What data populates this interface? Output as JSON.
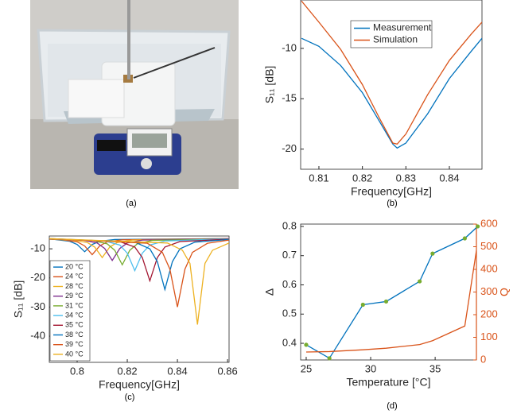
{
  "captions": [
    "(a)",
    "(b)",
    "(c)",
    "(d)"
  ],
  "chart_data": [
    {
      "type": "line",
      "xlabel": "Frequency[GHz]",
      "ylabel": "S₁₁ [dB]",
      "xlim": [
        0.8058,
        0.8475
      ],
      "xticks": [
        0.81,
        0.82,
        0.83,
        0.84
      ],
      "ylim": [
        -22,
        -5.2
      ],
      "yticks": [
        -20,
        -15,
        -10
      ],
      "legend": "top",
      "grid": false,
      "x": [
        0.806,
        0.81,
        0.815,
        0.82,
        0.824,
        0.827,
        0.828,
        0.83,
        0.835,
        0.84,
        0.845,
        0.8475
      ],
      "series": [
        {
          "name": "Measurement",
          "color": "#0072BD",
          "values": [
            -9.0,
            -9.8,
            -11.7,
            -14.4,
            -17.3,
            -19.5,
            -19.9,
            -19.4,
            -16.5,
            -13.0,
            -10.3,
            -9.0
          ]
        },
        {
          "name": "Simulation",
          "color": "#D95319",
          "values": [
            -5.3,
            -7.4,
            -10.1,
            -13.6,
            -17.0,
            -19.4,
            -19.5,
            -18.5,
            -14.6,
            -11.2,
            -8.6,
            -7.4
          ]
        }
      ]
    },
    {
      "type": "line",
      "xlabel": "Frequency[GHz]",
      "ylabel": "S₁₁ [dB]",
      "xlim": [
        0.7889,
        0.8606
      ],
      "xticks": [
        {
          "value": 0.8,
          "label": "0.8"
        },
        0.82,
        0.84,
        0.86
      ],
      "ylim": [
        -49,
        -5.6
      ],
      "yticks": [
        -40,
        -30,
        -20,
        -10
      ],
      "legend": "lower left",
      "grid": false,
      "series": [
        {
          "name": "20 °C",
          "color": "#0072BD",
          "x": [
            0.789,
            0.791,
            0.797,
            0.8,
            0.803,
            0.806,
            0.809,
            0.815,
            0.8606
          ],
          "values": [
            -6.6,
            -6.8,
            -7.4,
            -8.5,
            -11,
            -8.5,
            -7.4,
            -6.8,
            -6.5
          ]
        },
        {
          "name": "24 °C",
          "color": "#D95319",
          "x": [
            0.789,
            0.794,
            0.8,
            0.803,
            0.806,
            0.809,
            0.812,
            0.818,
            0.8606
          ],
          "values": [
            -6.7,
            -6.9,
            -7.6,
            -9,
            -12,
            -9,
            -7.6,
            -6.9,
            -6.5
          ]
        },
        {
          "name": "28 °C",
          "color": "#EDB120",
          "x": [
            0.789,
            0.798,
            0.804,
            0.807,
            0.81,
            0.813,
            0.816,
            0.822,
            0.8606
          ],
          "values": [
            -6.7,
            -7.0,
            -7.8,
            -9.4,
            -13,
            -9.4,
            -7.8,
            -7.0,
            -6.5
          ]
        },
        {
          "name": "29 °C",
          "color": "#7E2F8E",
          "x": [
            0.789,
            0.802,
            0.808,
            0.811,
            0.814,
            0.817,
            0.82,
            0.826,
            0.8606
          ],
          "values": [
            -6.6,
            -7.0,
            -8.0,
            -9.9,
            -14,
            -9.9,
            -8.0,
            -7.0,
            -6.5
          ]
        },
        {
          "name": "31 °C",
          "color": "#77AC30",
          "x": [
            0.789,
            0.806,
            0.812,
            0.815,
            0.818,
            0.821,
            0.824,
            0.83,
            0.8606
          ],
          "values": [
            -6.6,
            -7.1,
            -8.3,
            -10.5,
            -15.5,
            -10.5,
            -8.3,
            -7.1,
            -6.6
          ]
        },
        {
          "name": "34 °C",
          "color": "#4DBEEE",
          "x": [
            0.789,
            0.811,
            0.817,
            0.82,
            0.823,
            0.826,
            0.829,
            0.835,
            0.8606
          ],
          "values": [
            -6.6,
            -7.3,
            -8.7,
            -11.5,
            -17.5,
            -11.5,
            -8.7,
            -7.3,
            -6.6
          ]
        },
        {
          "name": "35 °C",
          "color": "#A2142F",
          "x": [
            0.789,
            0.817,
            0.823,
            0.826,
            0.829,
            0.832,
            0.835,
            0.841,
            0.8606
          ],
          "values": [
            -6.6,
            -7.5,
            -9.4,
            -13,
            -21,
            -13,
            -9.4,
            -7.5,
            -6.7
          ]
        },
        {
          "name": "38 °C",
          "color": "#0072BD",
          "x": [
            0.789,
            0.823,
            0.829,
            0.832,
            0.835,
            0.838,
            0.841,
            0.847,
            0.8606
          ],
          "values": [
            -6.5,
            -7.7,
            -10,
            -14.4,
            -24,
            -14.4,
            -10,
            -7.7,
            -6.8
          ]
        },
        {
          "name": "39 °C",
          "color": "#D95319",
          "x": [
            0.789,
            0.828,
            0.834,
            0.837,
            0.84,
            0.843,
            0.846,
            0.852,
            0.8606
          ],
          "values": [
            -6.5,
            -8.1,
            -11.2,
            -17,
            -30,
            -17,
            -11.2,
            -8.1,
            -7.0
          ]
        },
        {
          "name": "40 °C",
          "color": "#EDB120",
          "x": [
            0.789,
            0.836,
            0.842,
            0.845,
            0.848,
            0.851,
            0.854,
            0.8606
          ],
          "values": [
            -6.5,
            -8.0,
            -10.5,
            -15,
            -36,
            -15,
            -10.5,
            -8.0
          ]
        }
      ]
    },
    {
      "type": "line",
      "xlabel": "Temperature [°C]",
      "ylabel": "Δ",
      "y2label": "Q",
      "y2color": "#D95319",
      "xlim": [
        24.57,
        38.2
      ],
      "xticks": [
        25,
        30,
        35
      ],
      "ylim": [
        0.343,
        0.808
      ],
      "yticks": [
        0.4,
        0.5,
        0.6,
        0.7,
        0.8
      ],
      "y2lim": [
        0,
        600
      ],
      "y2ticks": [
        0,
        100,
        200,
        300,
        400,
        500,
        600
      ],
      "grid": false,
      "x": [
        25,
        26.8,
        29.4,
        31.2,
        33.8,
        34.8,
        37.3,
        38.3
      ],
      "series": [
        {
          "color": "#0072BD",
          "marker_color": "#77AC30",
          "values": [
            0.395,
            0.349,
            0.532,
            0.543,
            0.612,
            0.707,
            0.759,
            0.8
          ]
        },
        {
          "color": "#D95319",
          "axis": "y2",
          "values": [
            35,
            37,
            45,
            52,
            68,
            85,
            150,
            520
          ]
        }
      ]
    }
  ]
}
